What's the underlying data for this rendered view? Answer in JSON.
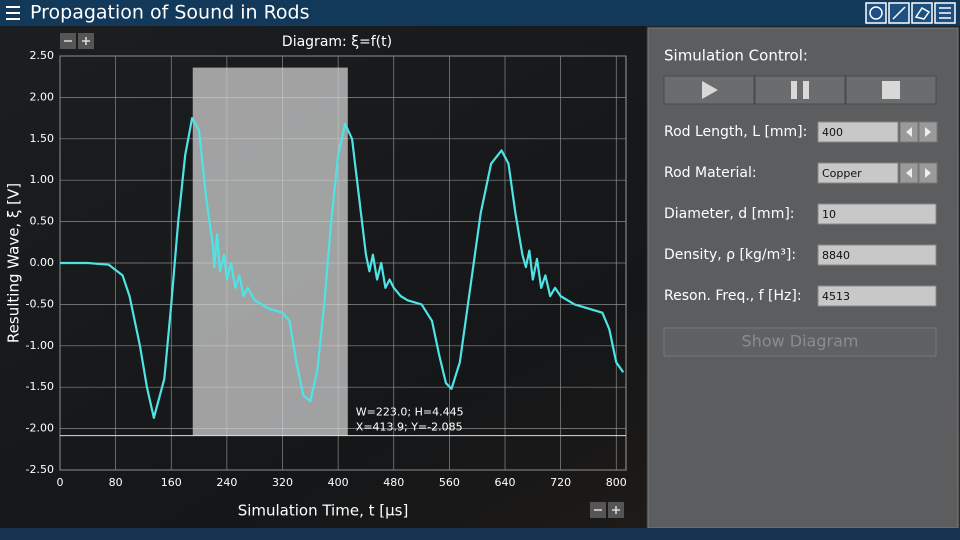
{
  "header": {
    "title": "Propagation of Sound in Rods"
  },
  "chart_data": {
    "type": "line",
    "title": "Diagram: ξ=f(t)",
    "x_label": "Simulation Time, t [μs]",
    "y_label": "Resulting Wave, ξ [V]",
    "x": [
      0,
      40,
      70,
      90,
      100,
      115,
      125,
      135,
      150,
      160,
      170,
      180,
      190,
      200,
      210,
      220,
      222,
      226,
      230,
      236,
      240,
      246,
      252,
      258,
      264,
      270,
      280,
      290,
      300,
      320,
      330,
      340,
      350,
      360,
      370,
      380,
      390,
      400,
      410,
      420,
      430,
      440,
      445,
      450,
      456,
      462,
      468,
      474,
      480,
      490,
      500,
      520,
      535,
      545,
      555,
      563,
      575,
      590,
      605,
      620,
      635,
      645,
      655,
      665,
      670,
      675,
      680,
      686,
      692,
      698,
      705,
      712,
      720,
      740,
      760,
      780,
      790,
      800,
      810
    ],
    "series": [
      {
        "color": "#4fe3e6",
        "values": [
          0,
          0,
          -0.02,
          -0.15,
          -0.4,
          -1.0,
          -1.5,
          -1.87,
          -1.4,
          -0.5,
          0.5,
          1.3,
          1.75,
          1.6,
          0.8,
          0.2,
          -0.05,
          0.35,
          -0.1,
          0.1,
          -0.2,
          0,
          -0.3,
          -0.15,
          -0.4,
          -0.3,
          -0.45,
          -0.5,
          -0.55,
          -0.6,
          -0.7,
          -1.2,
          -1.6,
          -1.67,
          -1.3,
          -0.5,
          0.5,
          1.3,
          1.68,
          1.5,
          0.8,
          0.1,
          -0.1,
          0.1,
          -0.2,
          0,
          -0.3,
          -0.2,
          -0.3,
          -0.4,
          -0.45,
          -0.5,
          -0.7,
          -1.1,
          -1.45,
          -1.52,
          -1.2,
          -0.3,
          0.6,
          1.2,
          1.36,
          1.2,
          0.6,
          0.1,
          -0.05,
          0.15,
          -0.2,
          0.05,
          -0.3,
          -0.15,
          -0.4,
          -0.3,
          -0.4,
          -0.5,
          -0.55,
          -0.6,
          -0.8,
          -1.2,
          -1.32
        ]
      }
    ],
    "xlim": [
      0,
      814
    ],
    "ylim": [
      -2.5,
      2.5
    ],
    "xticks": [
      0,
      80,
      160,
      240,
      320,
      400,
      480,
      560,
      640,
      720,
      800
    ],
    "yticks": [
      {
        "value": 2.5,
        "label": "2.50"
      },
      {
        "value": 2,
        "label": "2.00"
      },
      {
        "value": 1.5,
        "label": "1.50"
      },
      {
        "value": 1,
        "label": "1.00"
      },
      {
        "value": 0.5,
        "label": "0.50"
      },
      {
        "value": 0,
        "label": "0.00"
      },
      {
        "value": -0.5,
        "label": "-0.50"
      },
      {
        "value": -1,
        "label": "-1.00"
      },
      {
        "value": -1.5,
        "label": "-1.50"
      },
      {
        "value": -2,
        "label": "-2.00"
      },
      {
        "value": -2.5,
        "label": "-2.50"
      }
    ],
    "grid": true,
    "selection": {
      "x": 413.9,
      "y": -2.085,
      "width": 223.0,
      "height": 4.445,
      "size_label": "W=223.0; H=4.445",
      "position_label": "X=413.9; Y=-2.085"
    }
  },
  "panel": {
    "title": "Simulation Control:",
    "fields": [
      {
        "label": "Rod Length, L [mm]:",
        "value": 400
      },
      {
        "label": "Rod Material:",
        "value": "Copper"
      },
      {
        "label": "Diameter, d [mm]:",
        "value": 10
      },
      {
        "label": "Density, ρ [kg/m³]:",
        "value": 8840
      },
      {
        "label": "Reson. Freq., f [Hz]:",
        "value": 4513
      }
    ],
    "button": "Show Diagram"
  }
}
